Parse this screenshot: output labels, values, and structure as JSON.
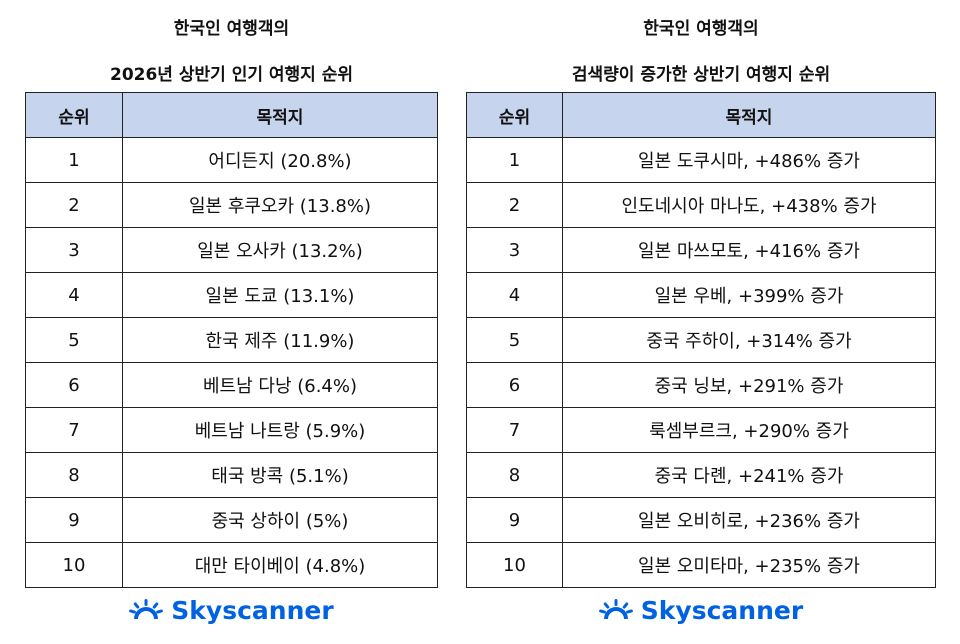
{
  "tables": [
    {
      "title_lines": [
        "한국인 여행객의",
        "2026년 상반기 인기 여행지 순위"
      ],
      "header": [
        "순위",
        "목적지"
      ],
      "rows": [
        [
          "1",
          "어디든지 (20.8%)"
        ],
        [
          "2",
          "일본 후쿠오카 (13.8%)"
        ],
        [
          "3",
          "일본 오사카 (13.2%)"
        ],
        [
          "4",
          "일본 도쿄 (13.1%)"
        ],
        [
          "5",
          "한국 제주 (11.9%)"
        ],
        [
          "6",
          "베트남 다낭 (6.4%)"
        ],
        [
          "7",
          "베트남 나트랑 (5.9%)"
        ],
        [
          "8",
          "태국 방콕 (5.1%)"
        ],
        [
          "9",
          "중국 상하이 (5%)"
        ],
        [
          "10",
          "대만 타이베이 (4.8%)"
        ]
      ],
      "logo": "Skyscanner"
    },
    {
      "title_lines": [
        "한국인 여행객의",
        "검색량이 증가한 상반기 여행지 순위"
      ],
      "header": [
        "순위",
        "목적지"
      ],
      "rows": [
        [
          "1",
          "일본 도쿠시마, +486% 증가"
        ],
        [
          "2",
          "인도네시아 마나도, +438% 증가"
        ],
        [
          "3",
          "일본 마쓰모토, +416% 증가"
        ],
        [
          "4",
          "일본 우베, +399% 증가"
        ],
        [
          "5",
          "중국 주하이, +314% 증가"
        ],
        [
          "6",
          "중국 닝보, +291% 증가"
        ],
        [
          "7",
          "룩셈부르크, +290% 증가"
        ],
        [
          "8",
          "중국 다롄, +241% 증가"
        ],
        [
          "9",
          "일본 오비히로, +236% 증가"
        ],
        [
          "10",
          "일본 오미타마, +235% 증가"
        ]
      ],
      "logo": "Skyscanner"
    }
  ]
}
